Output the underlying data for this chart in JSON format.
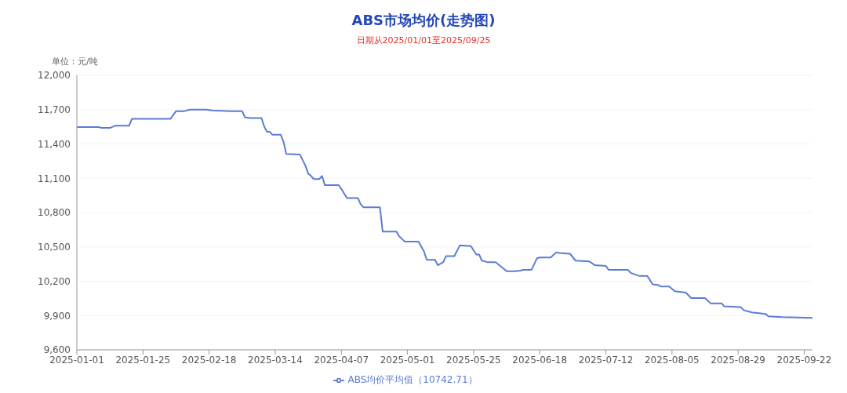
{
  "chart_data": {
    "type": "line",
    "title": "ABS市场均价(走势图)",
    "subtitle": "日期从2025/01/01至2025/09/25",
    "ylabel": "单位：元/吨",
    "x": [
      "2025-01-01",
      "2025-01-09",
      "2025-01-10",
      "2025-01-13",
      "2025-01-15",
      "2025-01-20",
      "2025-01-21",
      "2025-02-04",
      "2025-02-06",
      "2025-02-09",
      "2025-02-11",
      "2025-02-17",
      "2025-02-19",
      "2025-02-26",
      "2025-03-02",
      "2025-03-03",
      "2025-03-05",
      "2025-03-09",
      "2025-03-10",
      "2025-03-11",
      "2025-03-12",
      "2025-03-13",
      "2025-03-16",
      "2025-03-17",
      "2025-03-18",
      "2025-03-23",
      "2025-03-25",
      "2025-03-26",
      "2025-03-27",
      "2025-03-28",
      "2025-03-30",
      "2025-03-31",
      "2025-04-01",
      "2025-04-06",
      "2025-04-07",
      "2025-04-09",
      "2025-04-13",
      "2025-04-14",
      "2025-04-15",
      "2025-04-21",
      "2025-04-22",
      "2025-04-27",
      "2025-04-28",
      "2025-04-30",
      "2025-05-05",
      "2025-05-07",
      "2025-05-08",
      "2025-05-11",
      "2025-05-12",
      "2025-05-14",
      "2025-05-15",
      "2025-05-18",
      "2025-05-20",
      "2025-05-24",
      "2025-05-26",
      "2025-05-27",
      "2025-05-28",
      "2025-05-30",
      "2025-06-02",
      "2025-06-04",
      "2025-06-06",
      "2025-06-09",
      "2025-06-11",
      "2025-06-12",
      "2025-06-15",
      "2025-06-17",
      "2025-06-18",
      "2025-06-22",
      "2025-06-24",
      "2025-06-25",
      "2025-06-29",
      "2025-07-01",
      "2025-07-06",
      "2025-07-08",
      "2025-07-12",
      "2025-07-13",
      "2025-07-20",
      "2025-07-21",
      "2025-07-24",
      "2025-07-27",
      "2025-07-29",
      "2025-07-31",
      "2025-08-01",
      "2025-08-04",
      "2025-08-06",
      "2025-08-10",
      "2025-08-12",
      "2025-08-17",
      "2025-08-19",
      "2025-08-23",
      "2025-08-24",
      "2025-08-30",
      "2025-08-31",
      "2025-09-03",
      "2025-09-08",
      "2025-09-09",
      "2025-09-14",
      "2025-09-25"
    ],
    "series": [
      {
        "name": "ABS均价平均值（10742.71）",
        "color": "#5b7bd5",
        "values": [
          11547,
          11547,
          11540,
          11540,
          11560,
          11560,
          11620,
          11620,
          11687,
          11687,
          11700,
          11700,
          11693,
          11687,
          11687,
          11633,
          11627,
          11627,
          11553,
          11507,
          11507,
          11480,
          11480,
          11420,
          11313,
          11307,
          11207,
          11140,
          11120,
          11093,
          11093,
          11120,
          11040,
          11040,
          11007,
          10927,
          10927,
          10873,
          10847,
          10847,
          10633,
          10633,
          10593,
          10547,
          10547,
          10460,
          10387,
          10387,
          10340,
          10367,
          10420,
          10420,
          10513,
          10507,
          10433,
          10433,
          10380,
          10367,
          10367,
          10327,
          10287,
          10287,
          10293,
          10300,
          10300,
          10400,
          10407,
          10407,
          10453,
          10447,
          10440,
          10380,
          10373,
          10340,
          10333,
          10300,
          10300,
          10273,
          10247,
          10247,
          10173,
          10167,
          10153,
          10153,
          10113,
          10100,
          10053,
          10053,
          10007,
          10007,
          9980,
          9973,
          9947,
          9927,
          9913,
          9893,
          9887,
          9880
        ]
      }
    ],
    "xlim": [
      "2025-01-01",
      "2025-09-25"
    ],
    "xticks": [
      "2025-01-01",
      "2025-01-25",
      "2025-02-18",
      "2025-03-14",
      "2025-04-07",
      "2025-05-01",
      "2025-05-25",
      "2025-06-18",
      "2025-07-12",
      "2025-08-05",
      "2025-08-29",
      "2025-09-22"
    ],
    "ylim": [
      9600,
      12000
    ],
    "yticks": [
      {
        "value": 9600,
        "label": "9,600"
      },
      {
        "value": 9900,
        "label": "9,900"
      },
      {
        "value": 10200,
        "label": "10,200"
      },
      {
        "value": 10500,
        "label": "10,500"
      },
      {
        "value": 10800,
        "label": "10,800"
      },
      {
        "value": 11100,
        "label": "11,100"
      },
      {
        "value": 11400,
        "label": "11,400"
      },
      {
        "value": 11700,
        "label": "11,700"
      },
      {
        "value": 12000,
        "label": "12,000"
      }
    ],
    "grid": "y",
    "legend": "bottom",
    "marker": "none",
    "line_style": "solid"
  }
}
